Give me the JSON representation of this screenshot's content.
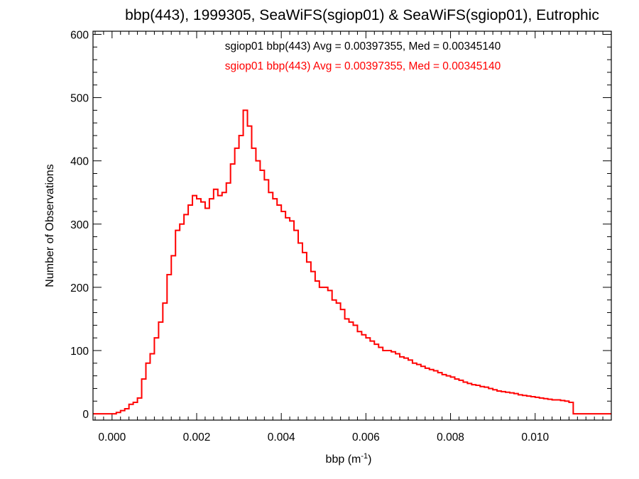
{
  "chart_data": {
    "type": "histogram",
    "title": "bbp(443), 1999305, SeaWiFS(sgiop01) & SeaWiFS(sgiop01), Eutrophic",
    "xlabel": "bbp (m",
    "xlabel_sup": "-1",
    "xlabel_suffix": ")",
    "ylabel": "Number of Observations",
    "xlim": [
      -0.00045,
      0.0118
    ],
    "ylim": [
      -10,
      605
    ],
    "x_ticks": [
      0.0,
      0.002,
      0.004,
      0.006,
      0.008,
      0.01
    ],
    "x_tick_labels": [
      "0.000",
      "0.002",
      "0.004",
      "0.006",
      "0.008",
      "0.010"
    ],
    "y_ticks": [
      0,
      100,
      200,
      300,
      400,
      500,
      600
    ],
    "y_tick_labels": [
      "0",
      "100",
      "200",
      "300",
      "400",
      "500",
      "600"
    ],
    "bin_start": 0.0001,
    "bin_width": 0.0001,
    "annotations": [
      {
        "text": "sgiop01 bbp(443) Avg = 0.00397355, Med = 0.00345140",
        "color": "#000000"
      },
      {
        "text": "sgiop01 bbp(443) Avg = 0.00397355, Med = 0.00345140",
        "color": "#ff0000"
      }
    ],
    "series": [
      {
        "color": "#ff0000",
        "counts": [
          2,
          5,
          8,
          15,
          18,
          25,
          55,
          80,
          95,
          120,
          145,
          175,
          220,
          250,
          290,
          300,
          315,
          330,
          345,
          340,
          335,
          325,
          340,
          355,
          345,
          350,
          365,
          395,
          420,
          440,
          480,
          455,
          420,
          400,
          385,
          370,
          350,
          340,
          330,
          320,
          310,
          305,
          290,
          270,
          255,
          240,
          225,
          210,
          200,
          200,
          195,
          180,
          175,
          165,
          150,
          145,
          140,
          130,
          125,
          120,
          115,
          110,
          105,
          100,
          100,
          98,
          95,
          90,
          88,
          85,
          80,
          78,
          75,
          72,
          70,
          68,
          65,
          62,
          60,
          58,
          55,
          53,
          50,
          48,
          46,
          45,
          43,
          42,
          40,
          38,
          36,
          35,
          34,
          33,
          32,
          30,
          29,
          28,
          27,
          26,
          25,
          24,
          23,
          22,
          22,
          21,
          20,
          18
        ]
      }
    ]
  }
}
